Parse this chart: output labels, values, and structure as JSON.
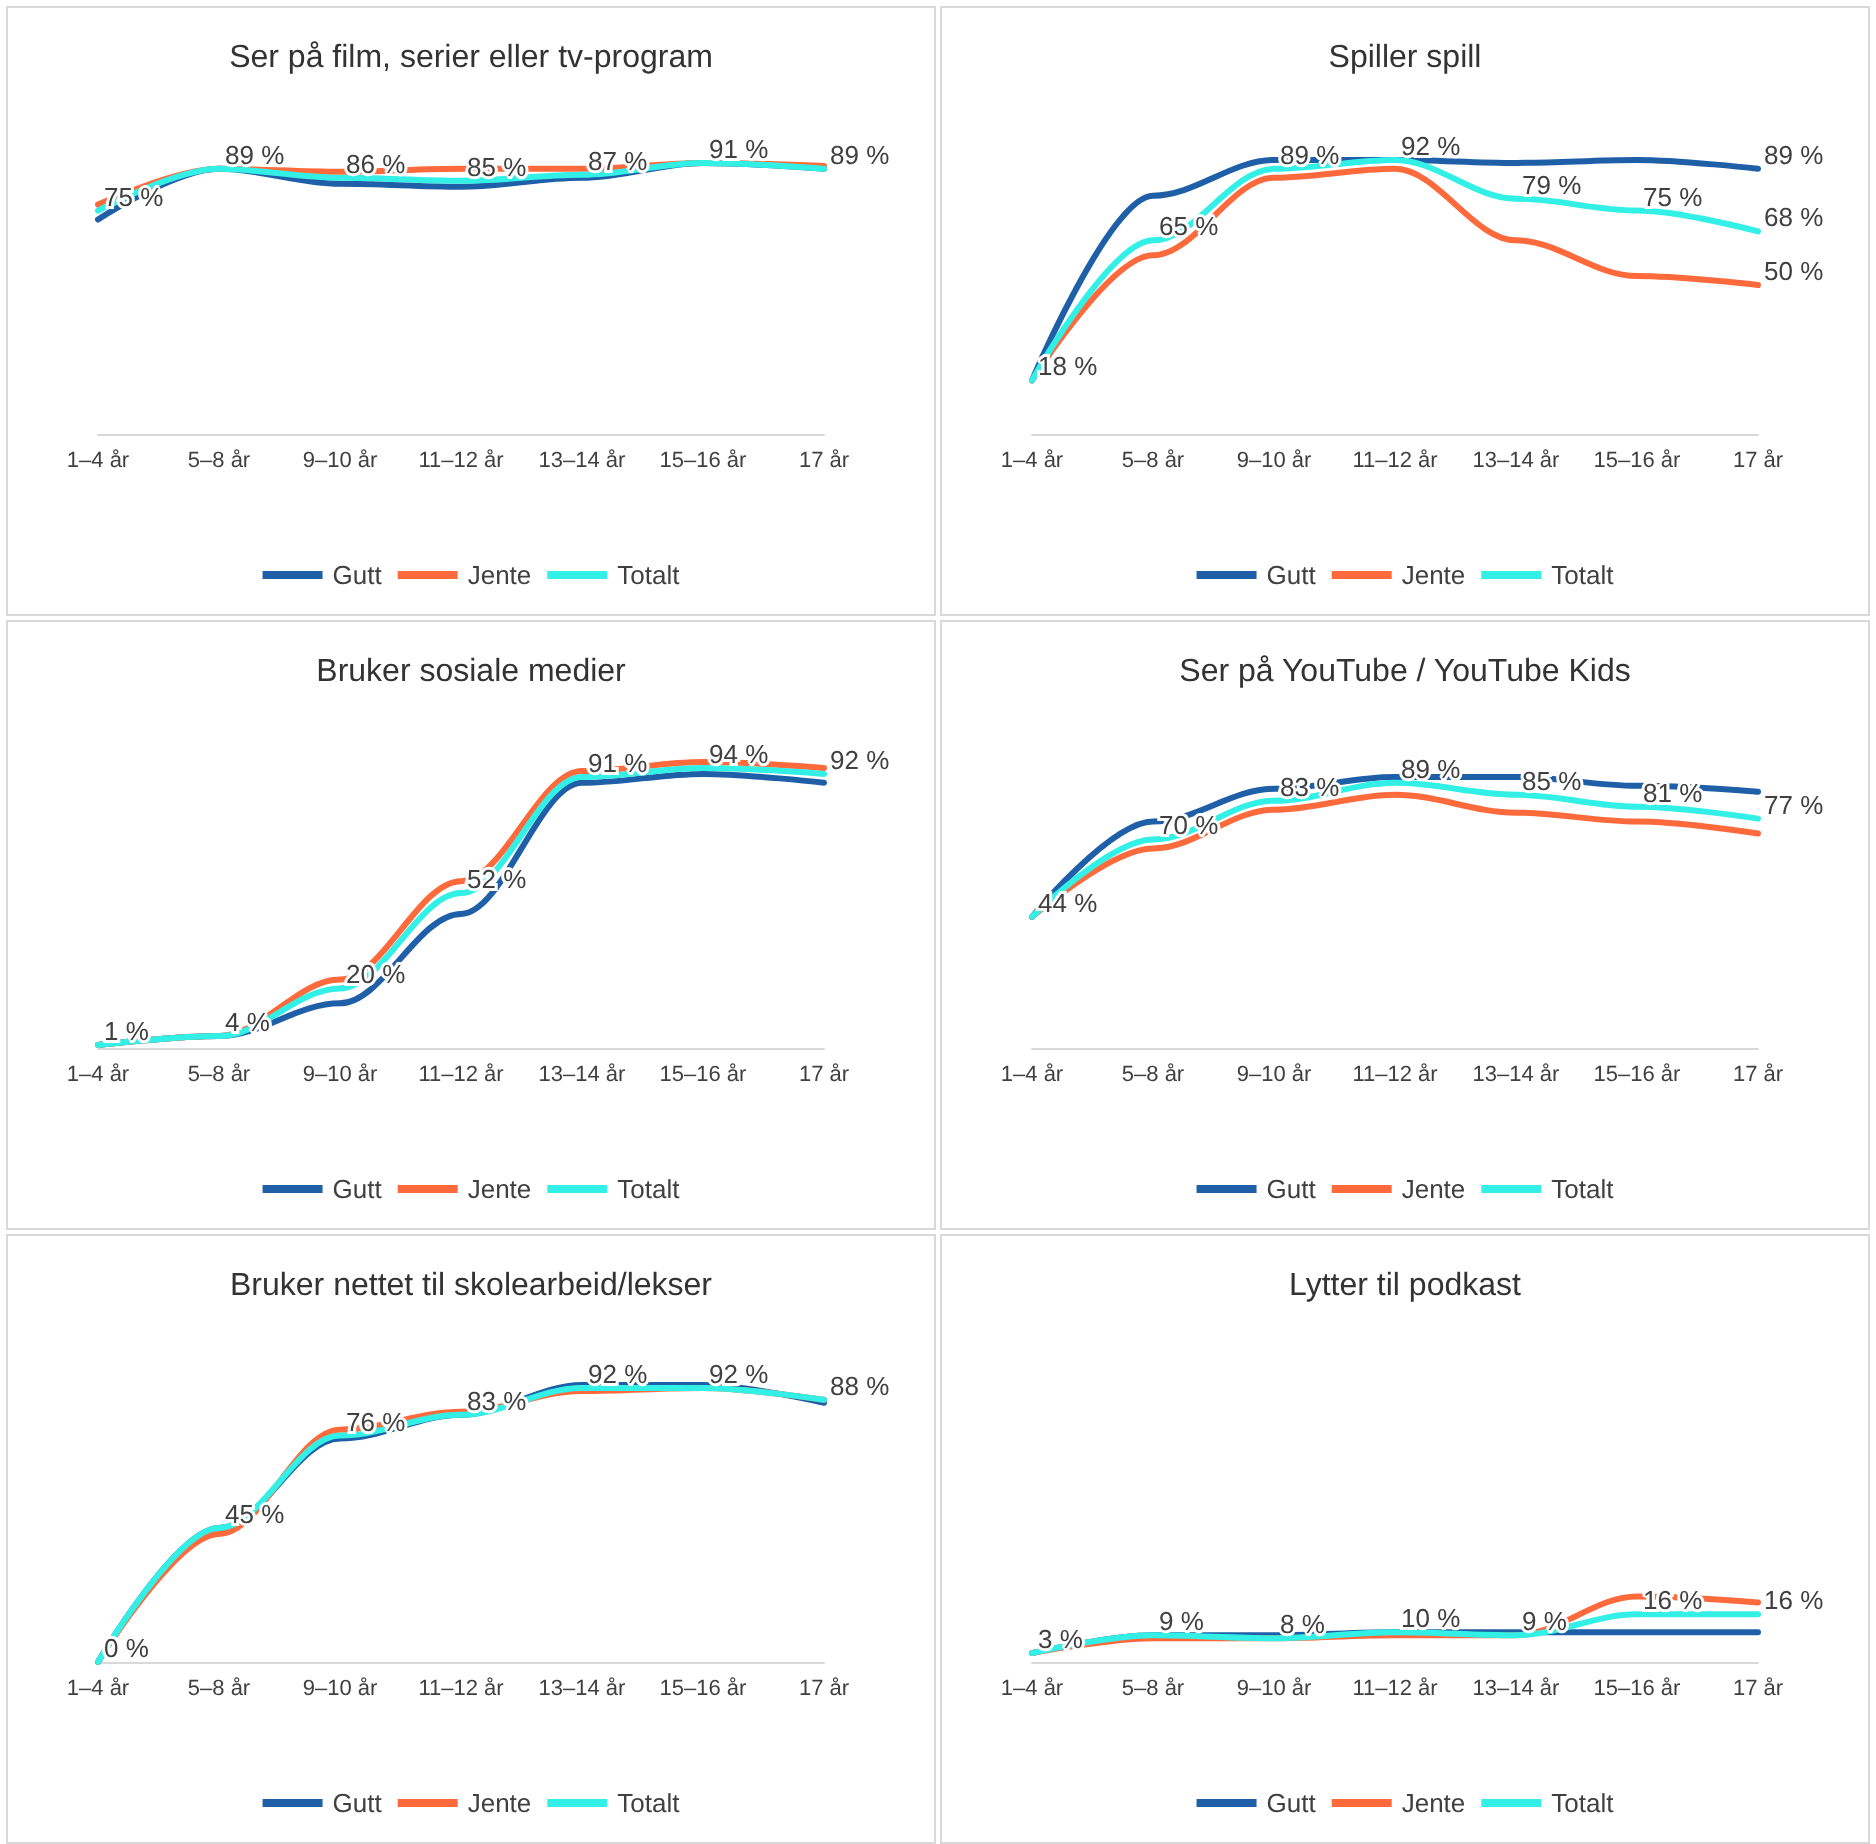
{
  "chart_data": [
    {
      "type": "line",
      "title": "Ser på film, serier eller tv-program",
      "categories": [
        "1–4 år",
        "5–8 år",
        "9–10 år",
        "11–12 år",
        "13–14 år",
        "15–16 år",
        "17 år"
      ],
      "tick_labels": "x",
      "grid": false,
      "legend": "bottom",
      "marker": "none",
      "line_style": "solid",
      "series": [
        {
          "name": "Gutt",
          "color": "#1f5fa8",
          "values": [
            72,
            89,
            84,
            83,
            86,
            91,
            89
          ]
        },
        {
          "name": "Jente",
          "color": "#ff6a3d",
          "values": [
            77,
            89,
            88,
            89,
            89,
            91,
            90
          ]
        },
        {
          "name": "Totalt",
          "color": "#33f0e6",
          "values": [
            75,
            89,
            86,
            85,
            87,
            91,
            89
          ],
          "value_labels": [
            "75 %",
            "89 %",
            "86 %",
            "85 %",
            "87 %",
            "91 %",
            "89 %"
          ]
        }
      ]
    },
    {
      "type": "line",
      "title": "Spiller spill",
      "categories": [
        "1–4 år",
        "5–8 år",
        "9–10 år",
        "11–12 år",
        "13–14 år",
        "15–16 år",
        "17 år"
      ],
      "tick_labels": "x",
      "grid": false,
      "legend": "bottom",
      "marker": "none",
      "line_style": "solid",
      "series": [
        {
          "name": "Gutt",
          "color": "#1f5fa8",
          "values": [
            18,
            80,
            92,
            92,
            91,
            92,
            89
          ],
          "value_labels": [
            null,
            null,
            null,
            null,
            null,
            null,
            "89 %"
          ]
        },
        {
          "name": "Jente",
          "color": "#ff6a3d",
          "values": [
            18,
            60,
            86,
            89,
            65,
            53,
            50
          ],
          "value_labels": [
            null,
            null,
            null,
            null,
            null,
            null,
            "50 %"
          ]
        },
        {
          "name": "Totalt",
          "color": "#33f0e6",
          "values": [
            18,
            65,
            89,
            92,
            79,
            75,
            68
          ],
          "value_labels": [
            "18 %",
            "65 %",
            "89 %",
            "92 %",
            "79 %",
            "75 %",
            "68 %"
          ]
        }
      ]
    },
    {
      "type": "line",
      "title": "Bruker sosiale medier",
      "categories": [
        "1–4 år",
        "5–8 år",
        "9–10 år",
        "11–12 år",
        "13–14 år",
        "15–16 år",
        "17 år"
      ],
      "tick_labels": "x",
      "grid": false,
      "legend": "bottom",
      "marker": "none",
      "line_style": "solid",
      "series": [
        {
          "name": "Gutt",
          "color": "#1f5fa8",
          "values": [
            1,
            4,
            15,
            45,
            89,
            92,
            89
          ]
        },
        {
          "name": "Jente",
          "color": "#ff6a3d",
          "values": [
            1,
            4,
            23,
            56,
            93,
            96,
            94
          ]
        },
        {
          "name": "Totalt",
          "color": "#33f0e6",
          "values": [
            1,
            4,
            20,
            52,
            91,
            94,
            92
          ],
          "value_labels": [
            "1 %",
            "4 %",
            "20 %",
            "52 %",
            "91 %",
            "94 %",
            "92 %"
          ]
        }
      ]
    },
    {
      "type": "line",
      "title": "Ser på YouTube / YouTube Kids",
      "categories": [
        "1–4 år",
        "5–8 år",
        "9–10 år",
        "11–12 år",
        "13–14 år",
        "15–16 år",
        "17 år"
      ],
      "tick_labels": "x",
      "grid": false,
      "legend": "bottom",
      "marker": "none",
      "line_style": "solid",
      "series": [
        {
          "name": "Gutt",
          "color": "#1f5fa8",
          "values": [
            44,
            76,
            87,
            91,
            91,
            88,
            86
          ]
        },
        {
          "name": "Jente",
          "color": "#ff6a3d",
          "values": [
            44,
            67,
            80,
            85,
            79,
            76,
            72
          ]
        },
        {
          "name": "Totalt",
          "color": "#33f0e6",
          "values": [
            44,
            70,
            83,
            89,
            85,
            81,
            77
          ],
          "value_labels": [
            "44 %",
            "70 %",
            "83 %",
            "89 %",
            "85 %",
            "81 %",
            "77 %"
          ]
        }
      ]
    },
    {
      "type": "line",
      "title": "Bruker nettet til skolearbeid/lekser",
      "categories": [
        "1–4 år",
        "5–8 år",
        "9–10 år",
        "11–12 år",
        "13–14 år",
        "15–16 år",
        "17 år"
      ],
      "tick_labels": "x",
      "grid": false,
      "legend": "bottom",
      "marker": "none",
      "line_style": "solid",
      "series": [
        {
          "name": "Gutt",
          "color": "#1f5fa8",
          "values": [
            0,
            45,
            75,
            83,
            93,
            93,
            87
          ]
        },
        {
          "name": "Jente",
          "color": "#ff6a3d",
          "values": [
            0,
            43,
            78,
            84,
            91,
            92,
            88
          ]
        },
        {
          "name": "Totalt",
          "color": "#33f0e6",
          "values": [
            0,
            45,
            76,
            83,
            92,
            92,
            88
          ],
          "value_labels": [
            "0 %",
            "45 %",
            "76 %",
            "83 %",
            "92 %",
            "92 %",
            "88 %"
          ]
        }
      ]
    },
    {
      "type": "line",
      "title": "Lytter til podkast",
      "categories": [
        "1–4 år",
        "5–8 år",
        "9–10 år",
        "11–12 år",
        "13–14 år",
        "15–16 år",
        "17 år"
      ],
      "tick_labels": "x",
      "grid": false,
      "legend": "bottom",
      "marker": "none",
      "line_style": "solid",
      "series": [
        {
          "name": "Gutt",
          "color": "#1f5fa8",
          "values": [
            3,
            9,
            9,
            10,
            10,
            10,
            10
          ]
        },
        {
          "name": "Jente",
          "color": "#ff6a3d",
          "values": [
            3,
            8,
            8,
            9,
            9,
            22,
            20
          ]
        },
        {
          "name": "Totalt",
          "color": "#33f0e6",
          "values": [
            3,
            9,
            8,
            10,
            9,
            16,
            16
          ],
          "value_labels": [
            "3 %",
            "9 %",
            "8 %",
            "10 %",
            "9 %",
            "16 %",
            "16 %"
          ]
        }
      ]
    }
  ]
}
